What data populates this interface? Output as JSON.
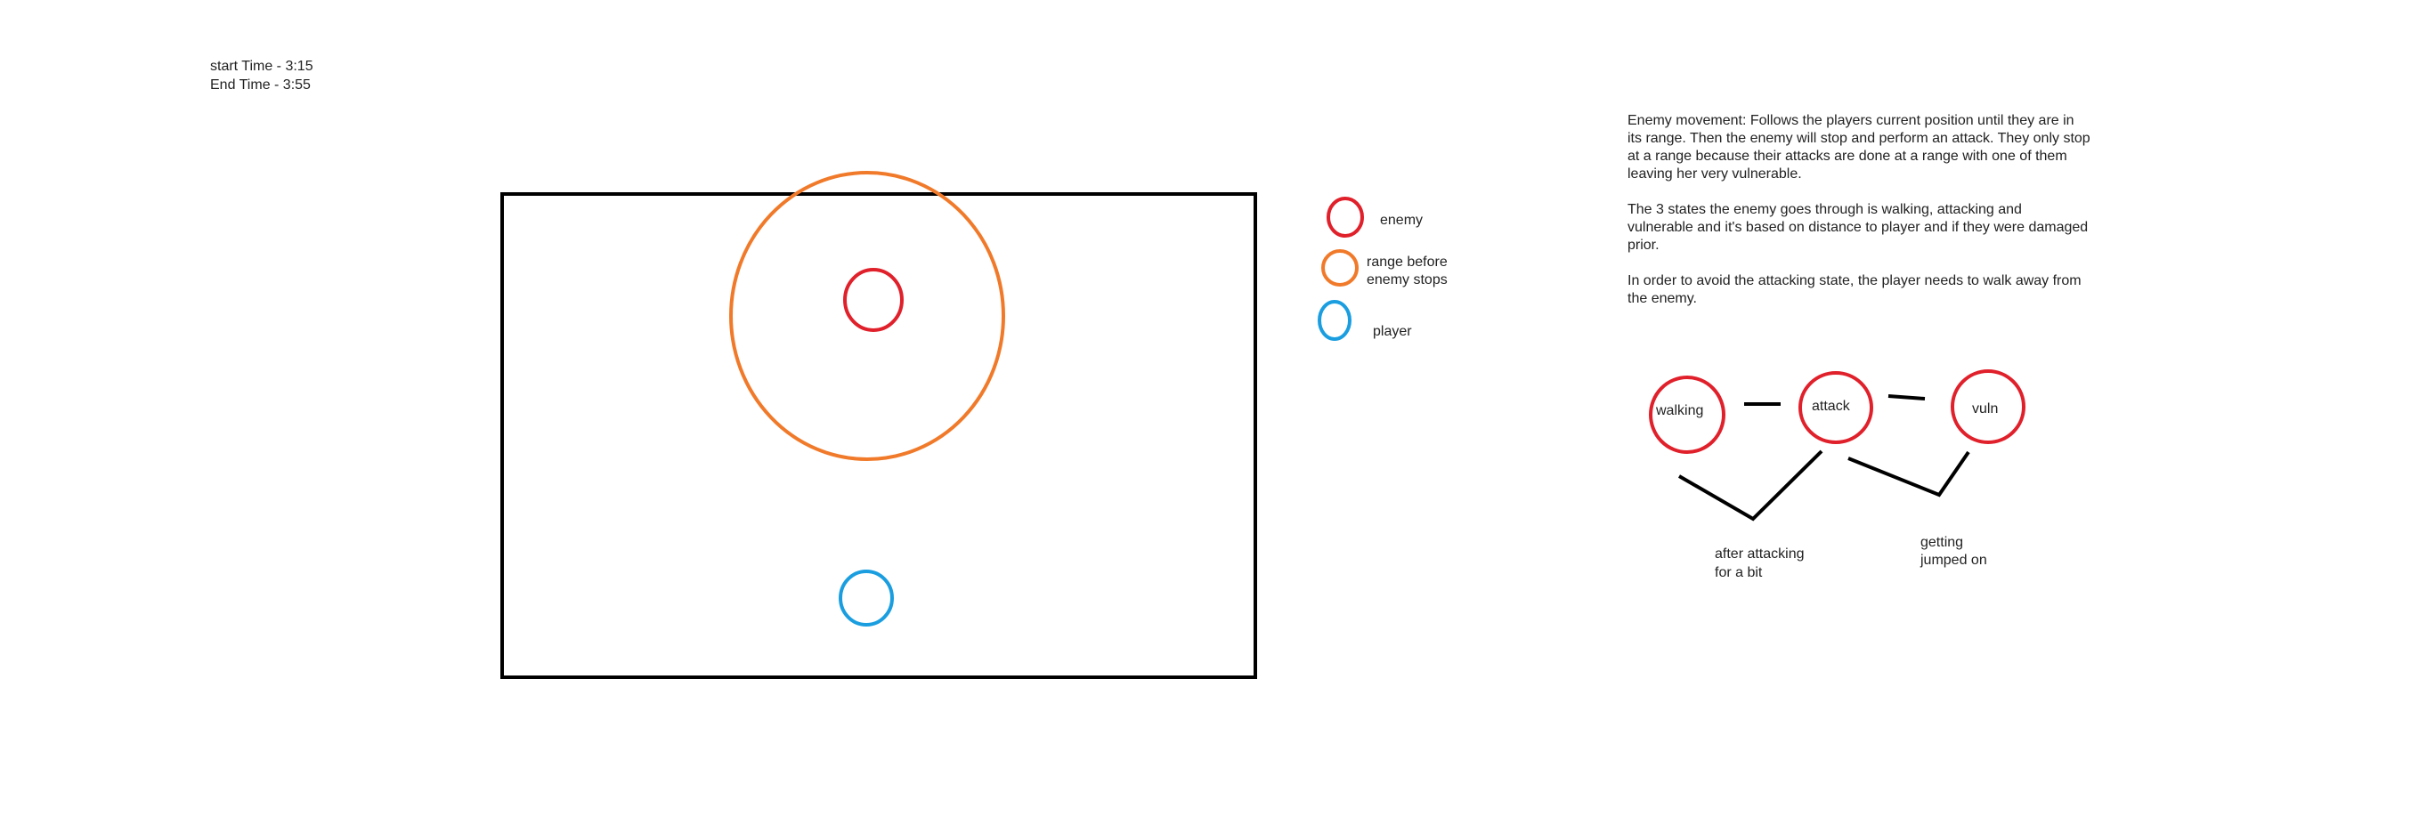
{
  "times": {
    "start": "start Time - 3:15",
    "end": "End Time - 3:55"
  },
  "legend": {
    "enemy": "enemy",
    "range_line1": "range before",
    "range_line2": "enemy stops",
    "player": "player"
  },
  "notes": {
    "p1": "Enemy movement: Follows the players current position until they are in its range. Then the enemy will stop and perform an attack. They only stop at a range because their attacks are done at a range with one of them leaving her very vulnerable.",
    "p2": "The 3 states the enemy goes through is walking, attacking and vulnerable and it's based on distance to player and if they were damaged prior.",
    "p3": "In order to avoid the attacking state, the player needs to walk away from the enemy."
  },
  "state_diagram": {
    "states": [
      "walking",
      "attack",
      "vuln"
    ],
    "transition1_line1": "after attacking",
    "transition1_line2": "for a bit",
    "transition2_line1": "getting",
    "transition2_line2": "jumped on"
  },
  "colors": {
    "enemy": "#e0202a",
    "range": "#f07a2a",
    "player": "#1a9ee0",
    "ink": "#000000"
  }
}
